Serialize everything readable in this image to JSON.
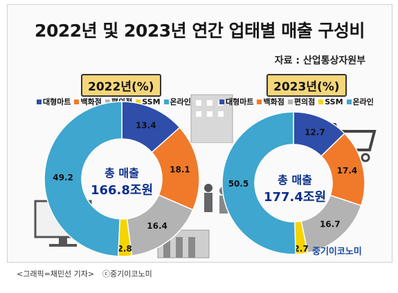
{
  "title": "2022년 및 2023년 연간 업태별 매출 구성비",
  "source": "자료 : 산업통상자원부",
  "caption": "<그래픽=채민선 기자>",
  "copyright": "ⓒ중기이코노미",
  "brand": "중기이코노미",
  "colors": {
    "대형마트": "#2e4eaa",
    "백화점": "#f07a2a",
    "편의점": "#b3b3b3",
    "SSM": "#f5d400",
    "온라인": "#3fa6cf"
  },
  "chart_data": [
    {
      "type": "pie",
      "year_label": "2022년(%)",
      "center_label_1": "총 매출",
      "center_label_2": "166.8조원",
      "legend": [
        "대형마트",
        "백화점",
        "편의점",
        "SSM",
        "온라인"
      ],
      "categories": [
        "대형마트",
        "백화점",
        "편의점",
        "SSM",
        "온라인"
      ],
      "values": [
        13.4,
        18.1,
        16.4,
        2.8,
        49.2
      ],
      "value_labels": [
        "13.4",
        "18.1",
        "16.4",
        "2.8",
        "49.2"
      ]
    },
    {
      "type": "pie",
      "year_label": "2023년(%)",
      "center_label_1": "총 매출",
      "center_label_2": "177.4조원",
      "legend": [
        "대형마트",
        "백화점",
        "편의점",
        "SSM",
        "온라인"
      ],
      "categories": [
        "대형마트",
        "백화점",
        "편의점",
        "SSM",
        "온라인"
      ],
      "values": [
        12.7,
        17.4,
        16.7,
        2.7,
        50.5
      ],
      "value_labels": [
        "12.7",
        "17.4",
        "16.7",
        "2.7",
        "50.5"
      ]
    }
  ]
}
